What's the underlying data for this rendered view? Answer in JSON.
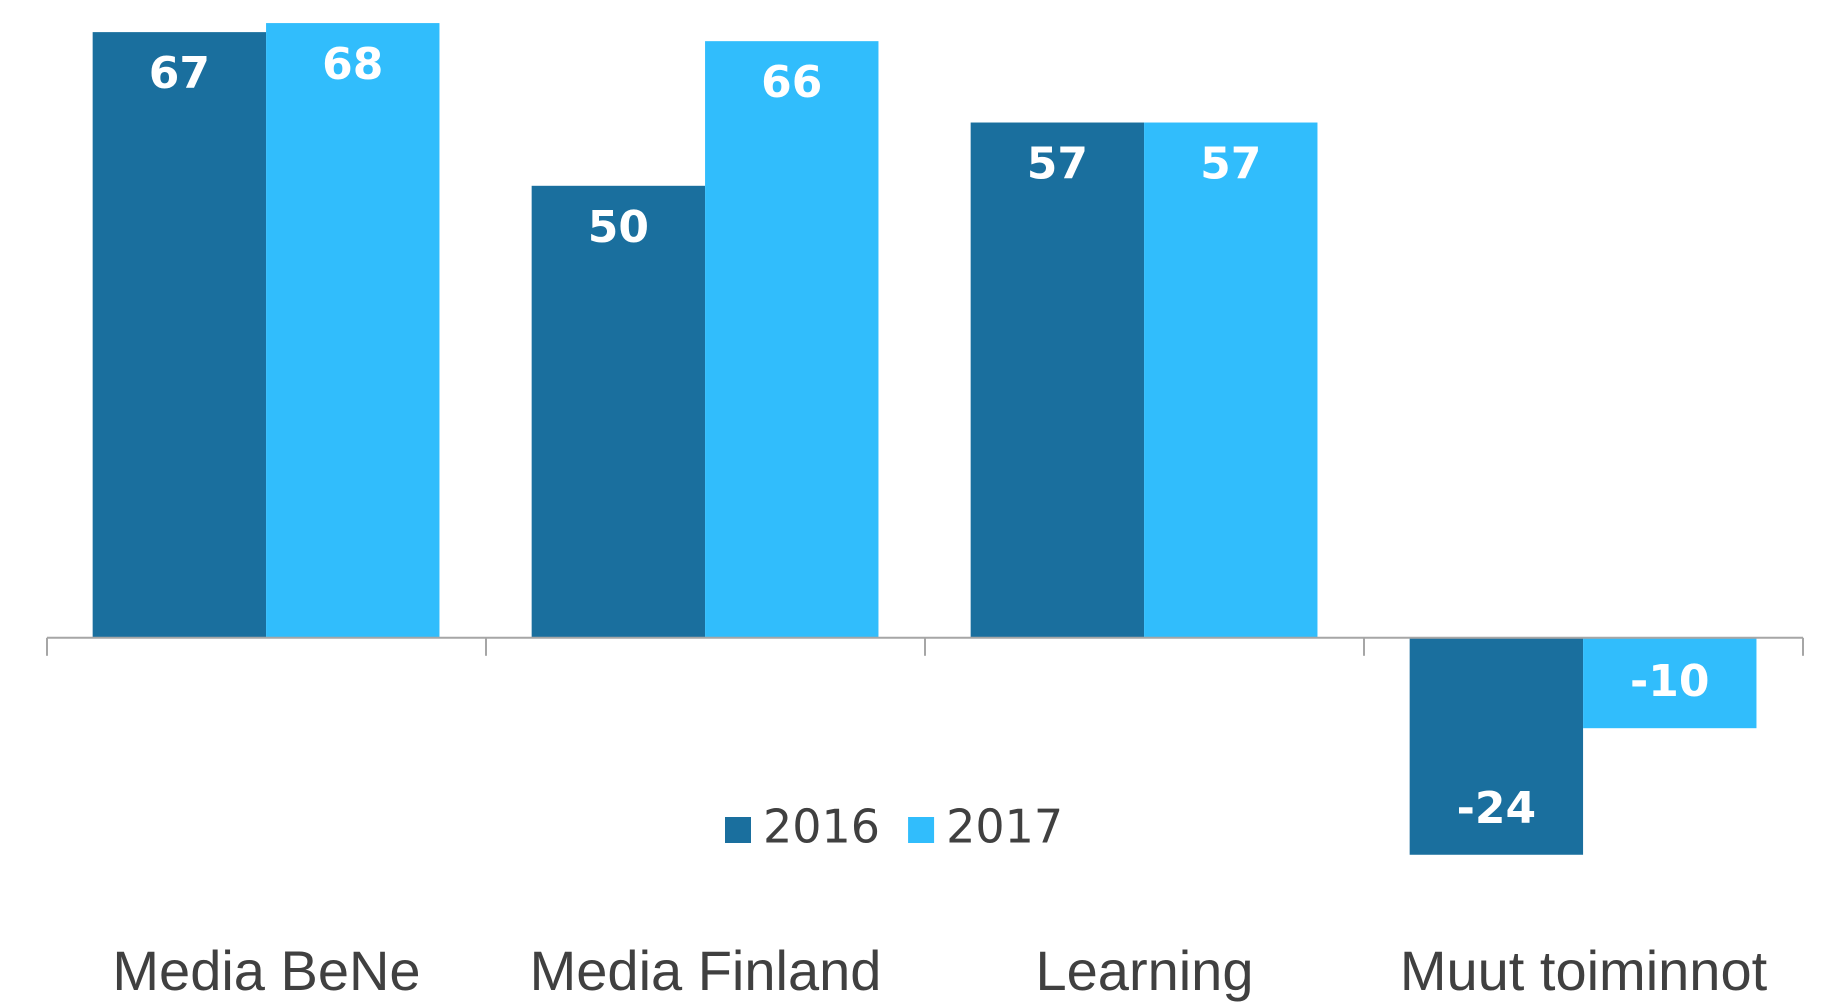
{
  "chart_data": {
    "type": "bar",
    "categories": [
      "Media BeNe",
      "Media Finland",
      "Learning",
      "Muut toiminnot"
    ],
    "series": [
      {
        "name": "2016",
        "color": "#1a6f9e",
        "values": [
          67,
          50,
          57,
          -24
        ]
      },
      {
        "name": "2017",
        "color": "#31bdfc",
        "values": [
          68,
          66,
          57,
          -10
        ]
      }
    ],
    "ylim": [
      -30,
      70
    ],
    "legend": "bottom"
  }
}
